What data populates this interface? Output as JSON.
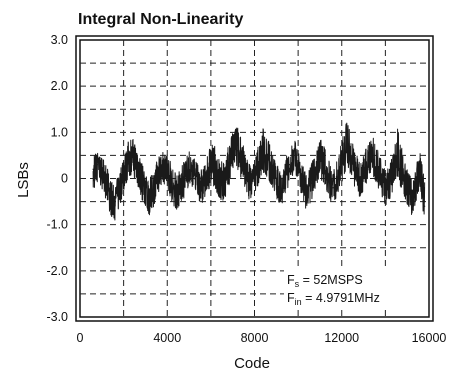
{
  "chart_data": {
    "type": "line",
    "title": "Integral Non-Linearity",
    "xlabel": "Code",
    "ylabel": "LSBs",
    "xlim": [
      0,
      16000
    ],
    "ylim": [
      -3.0,
      3.0
    ],
    "xticks": [
      0,
      4000,
      8000,
      12000,
      16000
    ],
    "xtick_labels": [
      "0",
      "4000",
      "8000",
      "12000",
      "16000"
    ],
    "yticks": [
      3.0,
      2.0,
      1.0,
      0,
      -1.0,
      -2.0,
      -3.0
    ],
    "ytick_labels": [
      "3.0",
      "2.0",
      "1.0",
      "0",
      "-1.0",
      "-2.0",
      "-3.0"
    ],
    "grid": true,
    "series": [
      {
        "x": [
          600,
          800,
          1000,
          1200,
          1400,
          1600,
          1800,
          2000,
          2200,
          2400,
          2600,
          2800,
          3000,
          3200,
          3400,
          3600,
          3800,
          4000,
          4200,
          4400,
          4600,
          4800,
          5000,
          5200,
          5400,
          5600,
          5800,
          6000,
          6200,
          6400,
          6600,
          6800,
          7000,
          7200,
          7400,
          7600,
          7800,
          8000,
          8200,
          8400,
          8600,
          8800,
          9000,
          9200,
          9400,
          9600,
          9800,
          10000,
          10200,
          10400,
          10600,
          10800,
          11000,
          11200,
          11400,
          11600,
          11800,
          12000,
          12200,
          12400,
          12600,
          12800,
          13000,
          13200,
          13400,
          13600,
          13800,
          14000,
          14200,
          14400,
          14600,
          14800,
          15000,
          15200,
          15400,
          15600,
          15800
        ],
        "y": [
          0.2,
          0.3,
          0.2,
          -0.1,
          -0.4,
          -0.6,
          -0.3,
          0.1,
          0.4,
          0.5,
          0.3,
          0.0,
          -0.3,
          -0.4,
          -0.2,
          0.1,
          0.3,
          0.2,
          -0.1,
          -0.3,
          -0.2,
          0.0,
          0.2,
          0.1,
          -0.1,
          -0.2,
          0.0,
          0.3,
          0.2,
          -0.1,
          -0.1,
          0.2,
          0.5,
          0.6,
          0.4,
          0.1,
          -0.1,
          0.0,
          0.3,
          0.5,
          0.4,
          0.2,
          -0.1,
          -0.2,
          0.0,
          0.3,
          0.4,
          0.2,
          -0.1,
          -0.3,
          -0.1,
          0.2,
          0.4,
          0.3,
          0.0,
          -0.2,
          0.0,
          0.3,
          0.6,
          0.5,
          0.2,
          0.0,
          0.1,
          0.4,
          0.5,
          0.3,
          0.0,
          -0.2,
          -0.1,
          0.2,
          0.3,
          0.1,
          -0.2,
          -0.4,
          -0.2,
          0.2,
          -0.6
        ],
        "envelope_upper": [
          0.6,
          0.6,
          0.5,
          0.3,
          0.0,
          -0.2,
          0.2,
          0.5,
          0.8,
          0.9,
          0.7,
          0.4,
          0.1,
          0.0,
          0.2,
          0.5,
          0.7,
          0.6,
          0.3,
          0.1,
          0.2,
          0.4,
          0.6,
          0.5,
          0.3,
          0.2,
          0.4,
          0.8,
          0.7,
          0.4,
          0.4,
          0.7,
          1.0,
          1.2,
          0.9,
          0.5,
          0.3,
          0.4,
          0.8,
          1.1,
          0.9,
          0.6,
          0.3,
          0.2,
          0.4,
          0.7,
          0.9,
          0.6,
          0.3,
          0.1,
          0.3,
          0.6,
          1.0,
          0.7,
          0.4,
          0.2,
          0.4,
          0.8,
          1.3,
          1.0,
          0.6,
          0.4,
          0.5,
          0.9,
          1.0,
          0.7,
          0.4,
          0.2,
          0.3,
          0.6,
          1.2,
          0.5,
          0.2,
          0.0,
          0.3,
          0.6,
          0.0
        ],
        "envelope_lower": [
          -0.3,
          -0.1,
          -0.2,
          -0.5,
          -0.8,
          -0.9,
          -0.7,
          -0.3,
          0.0,
          0.1,
          -0.1,
          -0.4,
          -0.7,
          -0.8,
          -0.6,
          -0.3,
          -0.1,
          -0.2,
          -0.5,
          -0.7,
          -0.6,
          -0.4,
          -0.2,
          -0.3,
          -0.5,
          -0.6,
          -0.4,
          -0.1,
          -0.2,
          -0.5,
          -0.5,
          -0.2,
          0.1,
          0.2,
          0.0,
          -0.3,
          -0.5,
          -0.4,
          -0.1,
          0.1,
          0.0,
          -0.2,
          -0.5,
          -0.6,
          -0.4,
          -0.1,
          0.0,
          -0.2,
          -0.5,
          -0.7,
          -0.5,
          -0.2,
          0.0,
          -0.1,
          -0.4,
          -0.6,
          -0.4,
          -0.1,
          0.2,
          0.1,
          -0.2,
          -0.4,
          -0.3,
          0.0,
          0.1,
          -0.1,
          -0.4,
          -0.6,
          -0.5,
          -0.2,
          -0.1,
          -0.3,
          -0.6,
          -0.8,
          -0.6,
          -0.2,
          -1.0
        ]
      }
    ],
    "annotations": {
      "fs_main": "F",
      "fs_sub": "s",
      "fs_value": " = 52MSPS",
      "fin_main": "F",
      "fin_sub": "in",
      "fin_value": " = 4.9791MHz"
    },
    "line_color": "#1a1a1a"
  }
}
